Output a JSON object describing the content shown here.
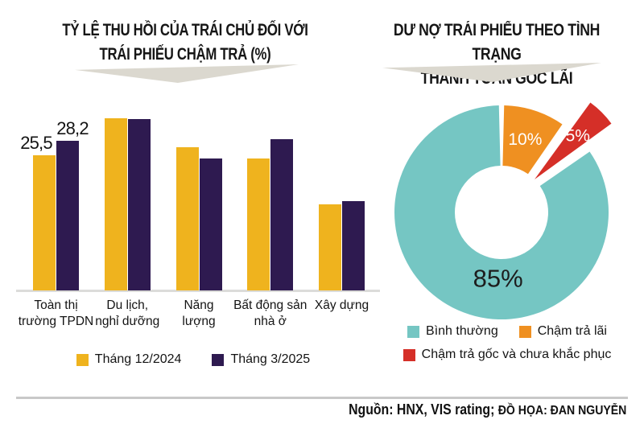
{
  "left": {
    "title_line1": "TỶ LỆ THU HỒI CỦA TRÁI CHỦ ĐỐI VỚI",
    "title_line2": "TRÁI PHIẾU CHẬM TRẢ (%)"
  },
  "right": {
    "title_line1": "DƯ NỢ TRÁI PHIẾU THEO TÌNH TRẠNG",
    "title_line2": "THANH TOÁN GỐC LÃI"
  },
  "source": {
    "prefix": "Nguồn: HNX, VIS rating; ",
    "credit": "ĐỒ HỌA: ĐAN NGUYỄN"
  },
  "colors": {
    "bar_yellow": "#efb31e",
    "bar_purple": "#2e1a50",
    "donut_teal": "#75c6c3",
    "donut_orange": "#ef9021",
    "donut_red": "#d52f28",
    "arrow_gray": "#dbd8cf",
    "axis_gray": "#dcdcda"
  },
  "chart_data": [
    {
      "type": "bar",
      "title": "TỶ LỆ THU HỒI CỦA TRÁI CHỦ ĐỐI VỚI TRÁI PHIẾU CHẬM TRẢ (%)",
      "categories": [
        "Toàn thị trường TPDN",
        "Du lịch, nghỉ dưỡng",
        "Năng lượng",
        "Bất động sản nhà ở",
        "Xây dựng"
      ],
      "label_lines": [
        [
          "Toàn thị",
          "trường TPDN"
        ],
        [
          "Du lịch,",
          "nghỉ dưỡng"
        ],
        [
          "Năng",
          "lượng"
        ],
        [
          "Bất động sản",
          "nhà ở"
        ],
        [
          "Xây dựng"
        ]
      ],
      "series": [
        {
          "name": "Tháng 12/2024",
          "color": "#efb31e",
          "values": [
            25.5,
            32.5,
            27.0,
            24.8,
            16.2
          ]
        },
        {
          "name": "Tháng 3/2025",
          "color": "#2e1a50",
          "values": [
            28.2,
            32.3,
            24.8,
            28.5,
            16.8
          ]
        }
      ],
      "value_labels": [
        {
          "series": 0,
          "group": 0,
          "text": "25,5"
        },
        {
          "series": 1,
          "group": 0,
          "text": "28,2"
        }
      ],
      "ylim": [
        0,
        35
      ],
      "unit": "%",
      "grid": false,
      "legend_position": "bottom"
    },
    {
      "type": "pie",
      "subtype": "donut",
      "title": "DƯ NỢ TRÁI PHIẾU THEO TÌNH TRẠNG THANH TOÁN GỐC LÃI",
      "slices": [
        {
          "label": "Chậm trả lãi",
          "value": 10,
          "text": "10%",
          "color": "#ef9021",
          "exploded": false
        },
        {
          "label": "Chậm trả gốc và chưa khắc phục",
          "value": 5,
          "text": "5%",
          "color": "#d52f28",
          "exploded": true
        },
        {
          "label": "Bình thường",
          "value": 85,
          "text": "85%",
          "color": "#75c6c3",
          "exploded": false
        }
      ],
      "legend_position": "bottom"
    }
  ]
}
